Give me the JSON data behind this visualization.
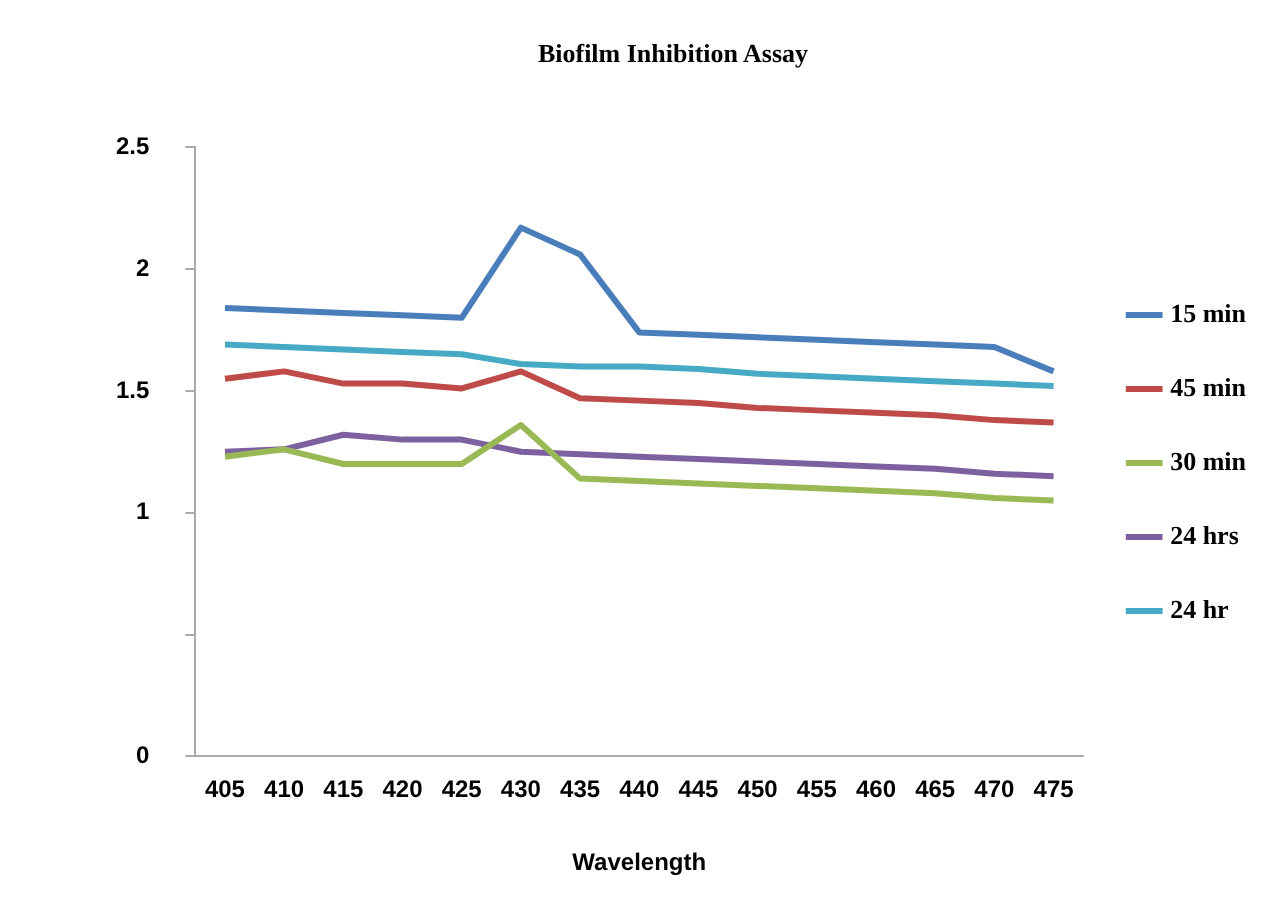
{
  "chart_data": {
    "type": "line",
    "title": "Biofilm Inhibition Assay",
    "xlabel": "Wavelength",
    "categories": [
      "405",
      "410",
      "415",
      "420",
      "425",
      "430",
      "435",
      "440",
      "445",
      "450",
      "455",
      "460",
      "465",
      "470",
      "475"
    ],
    "series": [
      {
        "name": "15 min",
        "color": "#4a7ebb",
        "values": [
          1.84,
          1.83,
          1.82,
          1.81,
          1.8,
          2.17,
          2.06,
          1.74,
          1.73,
          1.72,
          1.71,
          1.7,
          1.69,
          1.68,
          1.58
        ]
      },
      {
        "name": "45 min",
        "color": "#be4b48",
        "values": [
          1.55,
          1.58,
          1.53,
          1.53,
          1.51,
          1.58,
          1.47,
          1.46,
          1.45,
          1.43,
          1.42,
          1.41,
          1.4,
          1.38,
          1.37
        ]
      },
      {
        "name": "30 min",
        "color": "#98b954",
        "values": [
          1.23,
          1.26,
          1.2,
          1.2,
          1.2,
          1.36,
          1.14,
          1.13,
          1.12,
          1.11,
          1.1,
          1.09,
          1.08,
          1.06,
          1.05
        ]
      },
      {
        "name": "24 hrs",
        "color": "#7d60a0",
        "values": [
          1.25,
          1.26,
          1.32,
          1.3,
          1.3,
          1.25,
          1.24,
          1.23,
          1.22,
          1.21,
          1.2,
          1.19,
          1.18,
          1.16,
          1.15
        ]
      },
      {
        "name": "24 hr",
        "color": "#46aac5",
        "values": [
          1.69,
          1.68,
          1.67,
          1.66,
          1.65,
          1.61,
          1.6,
          1.6,
          1.59,
          1.57,
          1.56,
          1.55,
          1.54,
          1.53,
          1.52
        ]
      }
    ],
    "ylim": [
      0,
      2.5
    ],
    "yticks": [
      0,
      {
        "value": 0.5,
        "label": null
      },
      1,
      1.5,
      2,
      2.5
    ],
    "grid": false,
    "legend": "right",
    "marker": "none",
    "line_style": "solid"
  }
}
